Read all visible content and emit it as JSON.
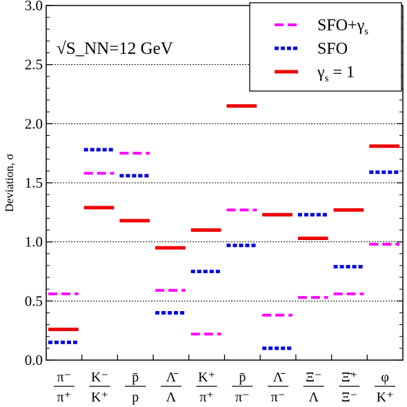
{
  "chart_data": {
    "type": "bar",
    "annotation": "√S_NN=12 GeV",
    "ylabel": "Deviation, σ",
    "ylim": [
      0,
      3.0
    ],
    "yticks": [
      "0.0",
      "0.5",
      "1.0",
      "1.5",
      "2.0",
      "2.5",
      "3.0"
    ],
    "grid_y_dashed": [
      0.5,
      1.0,
      1.5,
      2.0,
      2.5
    ],
    "legend_position": "top-right",
    "categories": [
      {
        "num": "π⁻",
        "den": "π⁺"
      },
      {
        "num": "K⁻",
        "den": "K⁺"
      },
      {
        "num": "p̄",
        "den": "p"
      },
      {
        "num": "Λ̄",
        "den": "Λ"
      },
      {
        "num": "K⁺",
        "den": "π⁺"
      },
      {
        "num": "p̄",
        "den": "π⁻"
      },
      {
        "num": "Λ̄",
        "den": "π⁻"
      },
      {
        "num": "Ξ⁻",
        "den": "Λ"
      },
      {
        "num": "Ξ̄⁺",
        "den": "Ξ⁻"
      },
      {
        "num": "φ",
        "den": "K⁺"
      }
    ],
    "series": [
      {
        "name": "SFO+γs",
        "legend_main": "SFO+γ",
        "legend_sub": "s",
        "style": "dash",
        "color": "#ff00ff",
        "values": [
          0.56,
          1.58,
          1.75,
          0.59,
          0.22,
          1.27,
          0.38,
          0.53,
          0.56,
          0.98
        ]
      },
      {
        "name": "SFO",
        "legend_main": "SFO",
        "legend_sub": "",
        "style": "dot",
        "color": "#0000dd",
        "values": [
          0.15,
          1.78,
          1.56,
          0.4,
          0.75,
          0.97,
          0.1,
          1.23,
          0.79,
          1.59
        ]
      },
      {
        "name": "γs = 1",
        "legend_main": "γ",
        "legend_sub": "s",
        "legend_tail": " = 1",
        "style": "solid",
        "color": "#ee0000",
        "values": [
          0.26,
          1.29,
          1.18,
          0.95,
          1.1,
          2.15,
          1.23,
          1.03,
          1.27,
          1.81
        ]
      }
    ]
  }
}
